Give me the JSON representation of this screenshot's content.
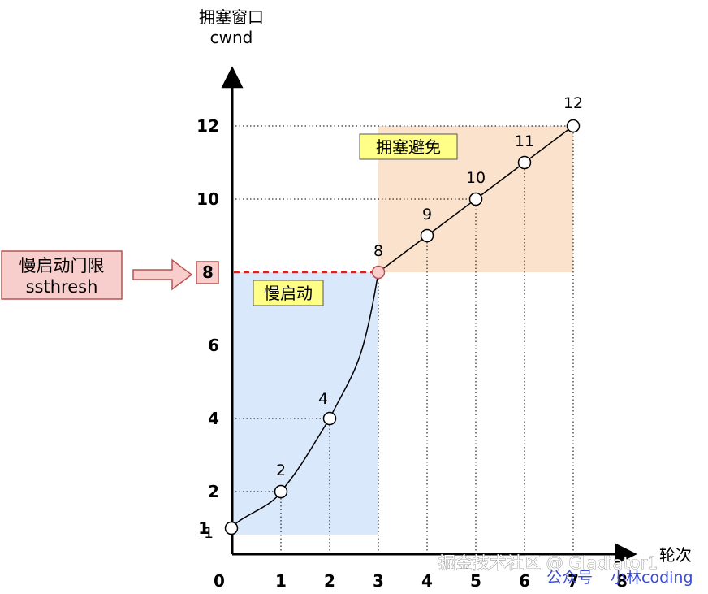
{
  "y_axis_title_cn": "拥塞窗口",
  "y_axis_title_en": "cwnd",
  "x_axis_title": "轮次",
  "slow_start_label": "慢启动",
  "congestion_avoidance_label": "拥塞避免",
  "ssthresh_box": {
    "line1": "慢启动门限",
    "line2": "ssthresh"
  },
  "watermark_main": "掘金技术社区 @ Gladiator1",
  "watermark_sub_left": "公众号",
  "watermark_sub_right": "小林coding",
  "colors": {
    "slow_start_fill": "#dae8fc",
    "congestion_avoid_fill": "#fae2cc",
    "ssthresh_line": "#e0201b",
    "label_bg": "#ffff88",
    "ssthresh_box_fill": "#f8cecc",
    "ssthresh_box_stroke": "#b85450",
    "ssthresh_point": "#f8cecc"
  },
  "chart_data": {
    "type": "line",
    "x_ticks": [
      "0",
      "1",
      "2",
      "3",
      "4",
      "5",
      "6",
      "7",
      "8"
    ],
    "y_ticks": [
      "1",
      "2",
      "4",
      "6",
      "8",
      "10",
      "12"
    ],
    "ssthresh": 8,
    "x": [
      0,
      1,
      2,
      3,
      4,
      5,
      6,
      7
    ],
    "y": [
      1,
      2,
      4,
      8,
      9,
      10,
      11,
      12
    ],
    "point_labels": [
      "1",
      "2",
      "4",
      "8",
      "9",
      "10",
      "11",
      "12"
    ]
  }
}
